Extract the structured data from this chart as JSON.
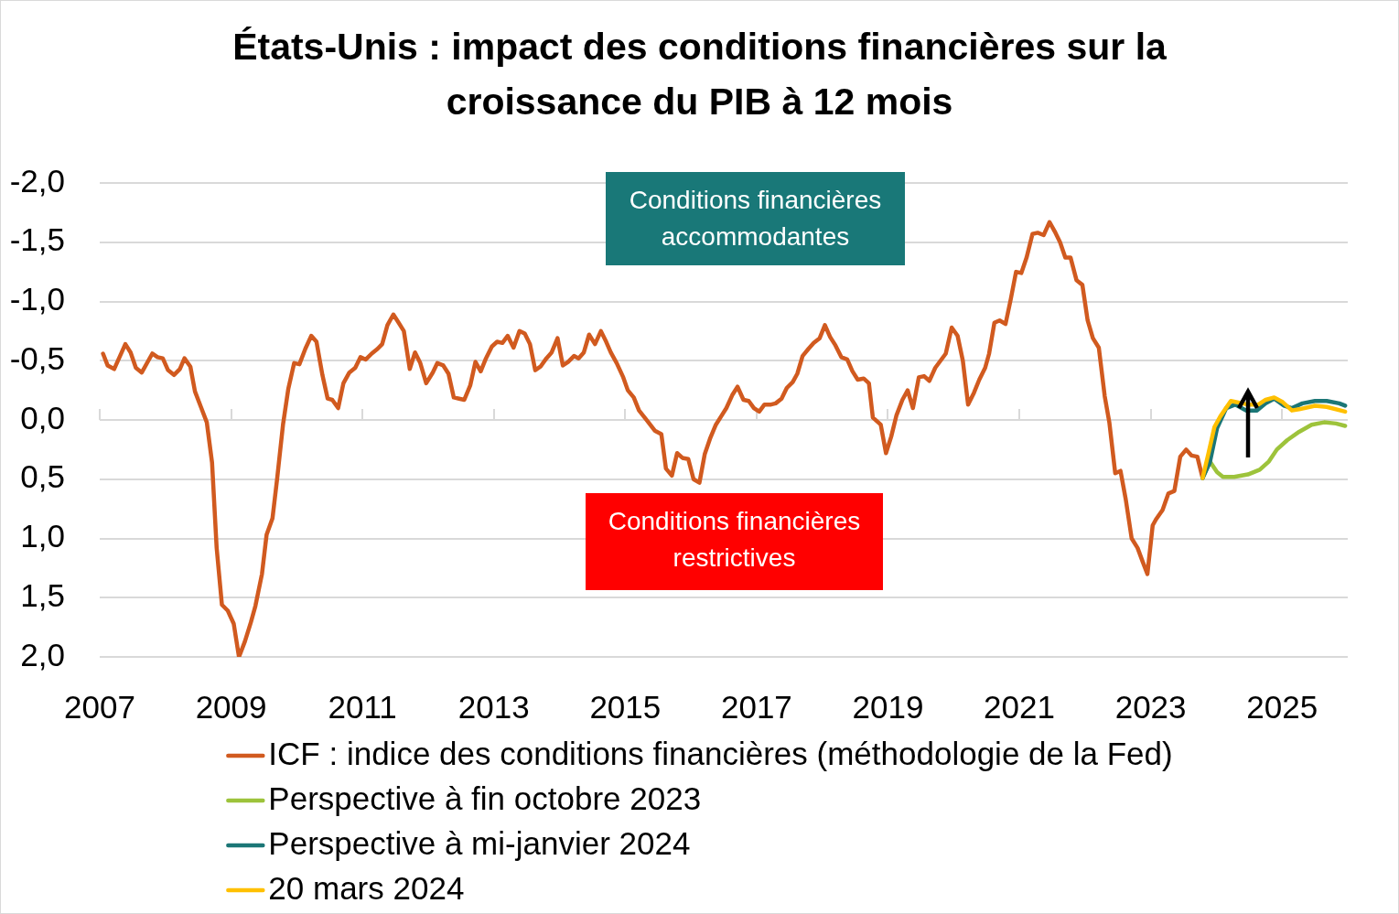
{
  "chart_data": {
    "type": "line",
    "title": "États-Unis : impact des conditions financières sur la croissance du PIB à 12 mois",
    "annotations": [
      "Conditions financières accommodantes",
      "Conditions financières restrictives"
    ],
    "xlim": [
      2007,
      2026
    ],
    "xticks": [
      2007,
      2009,
      2011,
      2013,
      2015,
      2017,
      2019,
      2021,
      2023,
      2025
    ],
    "ylim": [
      2,
      -2
    ],
    "yticks": [
      {
        "value": -2,
        "label": "-2,0"
      },
      {
        "value": -1.5,
        "label": "-1,5"
      },
      {
        "value": -1,
        "label": "-1,0"
      },
      {
        "value": -0.5,
        "label": "-0,5"
      },
      {
        "value": 0,
        "label": "0,0"
      },
      {
        "value": 0.5,
        "label": "0,5"
      },
      {
        "value": 1,
        "label": "1,0"
      },
      {
        "value": 1.5,
        "label": "1,5"
      },
      {
        "value": 2,
        "label": "2,0"
      }
    ],
    "grid": "y",
    "legend": "bottom",
    "series": [
      {
        "name": "ICF : indice des conditions financières (méthodologie de la Fed)",
        "color": "#d15a1f",
        "x": [
          2007.05,
          2007.12,
          2007.22,
          2007.39,
          2007.47,
          2007.55,
          2007.64,
          2007.8,
          2007.88,
          2007.96,
          2008.04,
          2008.13,
          2008.22,
          2008.29,
          2008.38,
          2008.45,
          2008.54,
          2008.63,
          2008.71,
          2008.78,
          2008.86,
          2008.95,
          2009.04,
          2009.12,
          2009.21,
          2009.3,
          2009.37,
          2009.47,
          2009.54,
          2009.63,
          2009.7,
          2009.79,
          2009.87,
          2009.96,
          2010.04,
          2010.13,
          2010.22,
          2010.3,
          2010.39,
          2010.47,
          2010.54,
          2010.63,
          2010.71,
          2010.8,
          2010.89,
          2010.97,
          2011.05,
          2011.14,
          2011.23,
          2011.3,
          2011.38,
          2011.47,
          2011.54,
          2011.63,
          2011.72,
          2011.8,
          2011.88,
          2011.97,
          2012.07,
          2012.14,
          2012.23,
          2012.31,
          2012.39,
          2012.47,
          2012.55,
          2012.64,
          2012.72,
          2012.8,
          2012.88,
          2012.97,
          2013.05,
          2013.13,
          2013.21,
          2013.3,
          2013.39,
          2013.47,
          2013.55,
          2013.63,
          2013.71,
          2013.8,
          2013.88,
          2013.97,
          2014.05,
          2014.13,
          2014.22,
          2014.29,
          2014.37,
          2014.45,
          2014.54,
          2014.63,
          2014.71,
          2014.78,
          2014.87,
          2014.97,
          2015.04,
          2015.13,
          2015.21,
          2015.34,
          2015.45,
          2015.55,
          2015.62,
          2015.71,
          2015.79,
          2015.87,
          2015.96,
          2016.04,
          2016.13,
          2016.21,
          2016.29,
          2016.38,
          2016.46,
          2016.54,
          2016.63,
          2016.71,
          2016.8,
          2016.88,
          2016.96,
          2017.04,
          2017.12,
          2017.22,
          2017.29,
          2017.38,
          2017.46,
          2017.55,
          2017.62,
          2017.7,
          2017.79,
          2017.87,
          2017.96,
          2018.04,
          2018.12,
          2018.2,
          2018.29,
          2018.38,
          2018.46,
          2018.54,
          2018.63,
          2018.71,
          2018.77,
          2018.89,
          2018.97,
          2019.05,
          2019.13,
          2019.22,
          2019.3,
          2019.38,
          2019.47,
          2019.55,
          2019.63,
          2019.72,
          2019.8,
          2019.88,
          2019.97,
          2020.06,
          2020.14,
          2020.22,
          2020.31,
          2020.39,
          2020.48,
          2020.54,
          2020.62,
          2020.7,
          2020.79,
          2020.87,
          2020.95,
          2021.03,
          2021.11,
          2021.2,
          2021.28,
          2021.37,
          2021.46,
          2021.54,
          2021.62,
          2021.7,
          2021.78,
          2021.87,
          2021.96,
          2022.04,
          2022.12,
          2022.21,
          2022.3,
          2022.37,
          2022.46,
          2022.54,
          2022.62,
          2022.71,
          2022.8,
          2022.88,
          2022.95,
          2023.03,
          2023.08,
          2023.18,
          2023.27,
          2023.36,
          2023.45,
          2023.54,
          2023.62,
          2023.71,
          2023.79
        ],
        "values": [
          -0.56,
          -0.46,
          -0.43,
          -0.64,
          -0.57,
          -0.44,
          -0.4,
          -0.56,
          -0.53,
          -0.52,
          -0.42,
          -0.38,
          -0.43,
          -0.52,
          -0.45,
          -0.24,
          -0.11,
          0.02,
          0.36,
          1.08,
          1.56,
          1.61,
          1.72,
          2.0,
          1.87,
          1.71,
          1.57,
          1.3,
          0.97,
          0.83,
          0.5,
          0.04,
          -0.26,
          -0.48,
          -0.47,
          -0.6,
          -0.71,
          -0.66,
          -0.38,
          -0.18,
          -0.17,
          -0.1,
          -0.31,
          -0.4,
          -0.44,
          -0.53,
          -0.51,
          -0.56,
          -0.6,
          -0.64,
          -0.8,
          -0.89,
          -0.83,
          -0.75,
          -0.43,
          -0.57,
          -0.48,
          -0.31,
          -0.4,
          -0.48,
          -0.46,
          -0.39,
          -0.19,
          -0.18,
          -0.17,
          -0.29,
          -0.49,
          -0.41,
          -0.52,
          -0.62,
          -0.66,
          -0.65,
          -0.71,
          -0.61,
          -0.75,
          -0.73,
          -0.64,
          -0.42,
          -0.45,
          -0.52,
          -0.57,
          -0.69,
          -0.46,
          -0.49,
          -0.54,
          -0.52,
          -0.57,
          -0.72,
          -0.64,
          -0.75,
          -0.66,
          -0.57,
          -0.48,
          -0.36,
          -0.25,
          -0.19,
          -0.08,
          0.01,
          0.09,
          0.12,
          0.41,
          0.47,
          0.28,
          0.32,
          0.33,
          0.5,
          0.53,
          0.29,
          0.16,
          0.04,
          -0.03,
          -0.1,
          -0.21,
          -0.28,
          -0.17,
          -0.16,
          -0.1,
          -0.07,
          -0.13,
          -0.13,
          -0.14,
          -0.18,
          -0.27,
          -0.32,
          -0.39,
          -0.54,
          -0.6,
          -0.65,
          -0.69,
          -0.8,
          -0.7,
          -0.63,
          -0.53,
          -0.51,
          -0.41,
          -0.34,
          -0.35,
          -0.31,
          -0.02,
          0.04,
          0.28,
          0.14,
          -0.04,
          -0.17,
          -0.25,
          -0.1,
          -0.36,
          -0.37,
          -0.33,
          -0.44,
          -0.5,
          -0.56,
          -0.78,
          -0.71,
          -0.5,
          -0.13,
          -0.23,
          -0.34,
          -0.44,
          -0.56,
          -0.82,
          -0.84,
          -0.81,
          -1.02,
          -1.25,
          -1.24,
          -1.37,
          -1.57,
          -1.58,
          -1.56,
          -1.67,
          -1.59,
          -1.5,
          -1.37,
          -1.37,
          -1.18,
          -1.14,
          -0.84,
          -0.69,
          -0.61,
          -0.2,
          0.02,
          0.45,
          0.43,
          0.67,
          1.0,
          1.08,
          1.2,
          1.3,
          0.89,
          0.84,
          0.76,
          0.62,
          0.6,
          0.31,
          0.25,
          0.3,
          0.31,
          0.49
        ]
      },
      {
        "name": "Perspective à fin octobre 2023",
        "color": "#9dc33b",
        "x": [
          2023.79,
          2023.9,
          2024.01,
          2024.1,
          2024.27,
          2024.48,
          2024.66,
          2024.8,
          2024.92,
          2025.08,
          2025.26,
          2025.45,
          2025.64,
          2025.82,
          2025.96
        ],
        "values": [
          0.49,
          0.35,
          0.44,
          0.48,
          0.48,
          0.46,
          0.42,
          0.35,
          0.25,
          0.17,
          0.1,
          0.04,
          0.02,
          0.03,
          0.05
        ]
      },
      {
        "name": "Perspective à mi-janvier 2024",
        "color": "#1b7676",
        "x": [
          2023.79,
          2023.9,
          2024.01,
          2024.15,
          2024.29,
          2024.45,
          2024.62,
          2024.75,
          2024.88,
          2025.03,
          2025.15,
          2025.31,
          2025.5,
          2025.68,
          2025.87,
          2025.96
        ],
        "values": [
          0.49,
          0.36,
          0.07,
          -0.1,
          -0.13,
          -0.08,
          -0.08,
          -0.14,
          -0.18,
          -0.12,
          -0.1,
          -0.14,
          -0.16,
          -0.16,
          -0.14,
          -0.12
        ]
      },
      {
        "name": "20 mars 2024",
        "color": "#ffc000",
        "x": [
          2023.79,
          2023.88,
          2023.97,
          2024.06,
          2024.22,
          2024.48,
          2024.64,
          2024.75,
          2024.88,
          2025.01,
          2025.15,
          2025.26,
          2025.5,
          2025.68,
          2025.96
        ],
        "values": [
          0.49,
          0.28,
          0.06,
          -0.03,
          -0.16,
          -0.13,
          -0.13,
          -0.17,
          -0.19,
          -0.15,
          -0.08,
          -0.09,
          -0.12,
          -0.11,
          -0.07
        ]
      }
    ]
  }
}
